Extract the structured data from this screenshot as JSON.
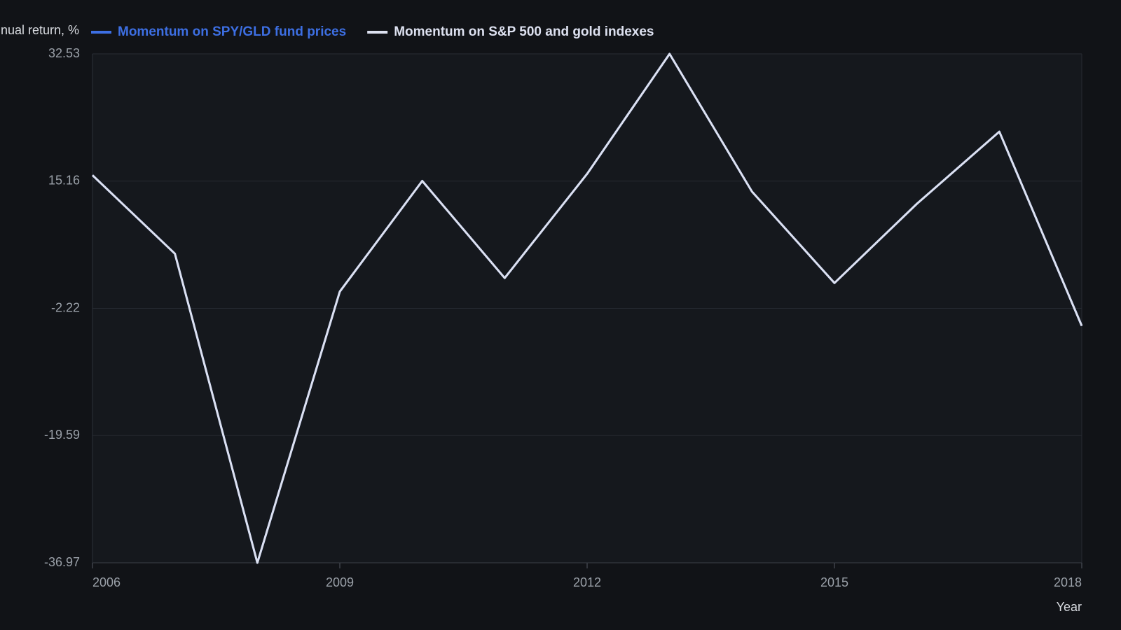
{
  "chart_data": {
    "type": "line",
    "y_label": "Annual return, %",
    "x_label": "Year",
    "x": [
      2006,
      2007,
      2008,
      2009,
      2010,
      2011,
      2012,
      2013,
      2014,
      2015,
      2016,
      2017,
      2018
    ],
    "series": [
      {
        "name": "Momentum on SPY/GLD fund prices",
        "color": "#3d6fe3",
        "values": [
          15.96,
          5.24,
          -36.97,
          0.07,
          15.18,
          1.92,
          16.15,
          32.53,
          13.72,
          1.24,
          12.06,
          21.91,
          -4.61
        ]
      },
      {
        "name": "Momentum on S&P 500 and gold indexes",
        "color": "#dde1f0",
        "values": [
          15.96,
          5.24,
          -36.97,
          0.07,
          15.18,
          1.92,
          16.15,
          32.53,
          13.72,
          1.24,
          12.06,
          21.91,
          -4.61
        ]
      }
    ],
    "xlim": [
      2006,
      2018
    ],
    "xticks": [
      2006,
      2009,
      2012,
      2015,
      2018
    ],
    "ylim": [
      -36.97,
      32.53
    ],
    "yticks": [
      -36.97,
      -19.59,
      -2.22,
      15.16,
      32.53
    ],
    "grid": true
  }
}
